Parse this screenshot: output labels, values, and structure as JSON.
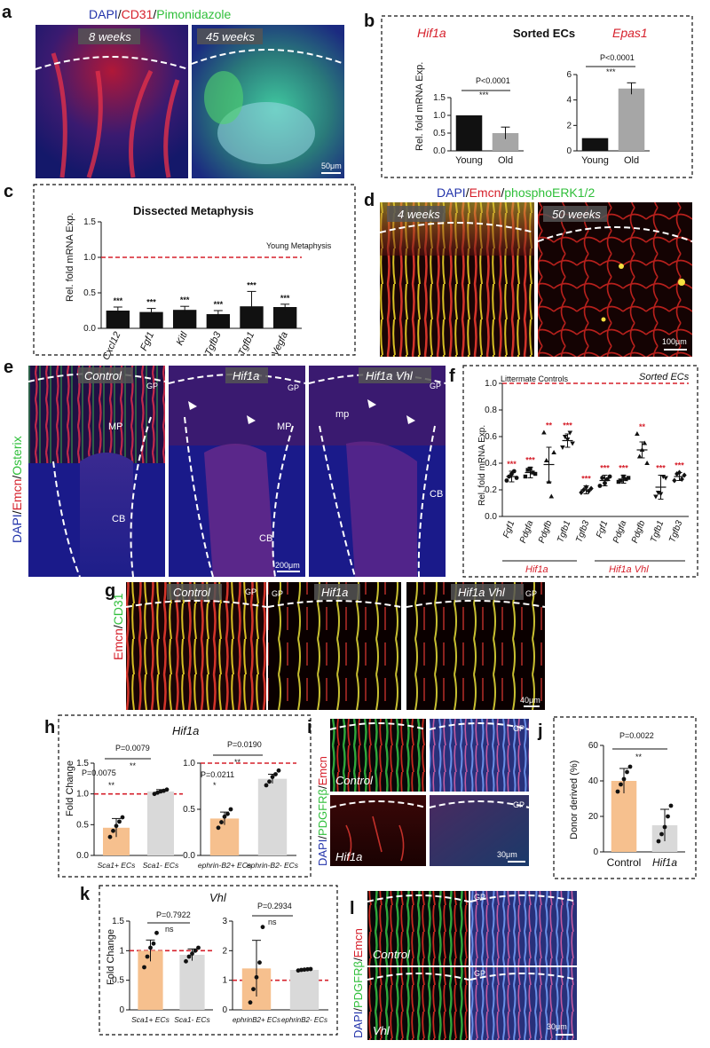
{
  "panels": {
    "a": {
      "letter": "a",
      "stain": [
        "DAPI",
        "/",
        "CD31",
        "/",
        "Pimonidazole"
      ],
      "img_left": "8 weeks",
      "img_right": "45 weeks",
      "scale": "50μm"
    },
    "b": {
      "letter": "b",
      "title": "Sorted ECs",
      "gene_left": "Hif1a",
      "gene_right": "Epas1",
      "ylabel": "Rel. fold mRNA  Exp.",
      "p_left": "P<0.0001",
      "p_right": "P<0.0001",
      "sig": "***"
    },
    "c": {
      "letter": "c",
      "title": "Dissected Metaphysis",
      "ylabel": "Rel. fold mRNA  Exp.",
      "ref_label": "Young Metaphysis"
    },
    "d": {
      "letter": "d",
      "stain": [
        "DAPI",
        "/",
        "Emcn",
        "/",
        "phosphoERK1/2"
      ],
      "img_left": "4 weeks",
      "img_right": "50 weeks",
      "scale": "100μm"
    },
    "e": {
      "letter": "e",
      "stain": [
        "DAPI",
        "/",
        "Emcn",
        "/",
        "Osterix"
      ],
      "img1": "Control",
      "img2": "Hif1a",
      "img3": "Hif1a Vhl",
      "gp": "GP",
      "mp1": "MP",
      "mp2": "MP",
      "mp3": "mp",
      "cb": "CB",
      "scale": "200μm"
    },
    "f": {
      "letter": "f",
      "title": "Sorted ECs",
      "ref_label": "Littermate Controls",
      "ylabel": "Rel. fold  mRNA Exp.",
      "group1": "Hif1a",
      "group2": "Hif1a Vhl"
    },
    "g": {
      "letter": "g",
      "stain": [
        "Emcn",
        "/",
        "CD31"
      ],
      "img1": "Control",
      "img2": "Hif1a",
      "img3": "Hif1a Vhl",
      "gp": "GP",
      "scale": "40μm"
    },
    "h": {
      "letter": "h",
      "title": "Hif1a",
      "ylabel": "Fold Change",
      "p1": "P=0.0079",
      "p2": "P=0.0075",
      "p3": "P=0.0190",
      "p4": "P=0.0211",
      "s1": "**",
      "s2": "**",
      "s3": "**",
      "s4": "*"
    },
    "i": {
      "letter": "i",
      "stain": [
        "DAPI",
        "/",
        "PDGFRβ",
        "/",
        "Emcn"
      ],
      "img_top": "Control",
      "img_bottom": "Hif1a",
      "gp": "GP",
      "scale": "30μm"
    },
    "j": {
      "letter": "j",
      "ylabel": "Donor derived (%)",
      "p": "P=0.0022",
      "sig": "**"
    },
    "k": {
      "letter": "k",
      "title": "Vhl",
      "ylabel": "Fold Change",
      "p1": "P=0.7922",
      "p2": "P=0.2934",
      "ns": "ns"
    },
    "l": {
      "letter": "l",
      "stain": [
        "DAPI",
        "/",
        "PDGFRβ",
        "/",
        "Emcn"
      ],
      "img_top": "Control",
      "img_bottom": "Vhl",
      "gp": "GP",
      "scale": "30μm"
    }
  },
  "colors": {
    "red": "#d6202b",
    "green": "#2fbf3a",
    "blue": "#2233aa",
    "orange": "#f6c08e",
    "grey": "#d9d9d9",
    "black": "#111111",
    "bar_grey": "#a6a6a6"
  },
  "chart_data": [
    {
      "id": "b-hif1a",
      "type": "bar",
      "title": "Hif1a",
      "categories": [
        "Young",
        "Old"
      ],
      "values": [
        1.0,
        0.5
      ],
      "errors": [
        0,
        0.17
      ],
      "ylim": [
        0,
        1.5
      ],
      "yticks": [
        0,
        0.5,
        1.0,
        1.5
      ],
      "colors": [
        "#111111",
        "#a6a6a6"
      ]
    },
    {
      "id": "b-epas1",
      "type": "bar",
      "title": "Epas1",
      "categories": [
        "Young",
        "Old"
      ],
      "values": [
        1.0,
        4.9
      ],
      "errors": [
        0,
        0.45
      ],
      "ylim": [
        0,
        6
      ],
      "yticks": [
        0,
        2,
        4,
        6
      ],
      "colors": [
        "#111111",
        "#a6a6a6"
      ]
    },
    {
      "id": "c",
      "type": "bar",
      "title": "Dissected Metaphysis",
      "categories": [
        "Cxcl12",
        "Fgf1",
        "Kitl",
        "Tgfb3",
        "Tgfb1",
        "Vegfa"
      ],
      "values": [
        0.25,
        0.23,
        0.26,
        0.2,
        0.31,
        0.3
      ],
      "errors": [
        0.05,
        0.05,
        0.05,
        0.05,
        0.21,
        0.04
      ],
      "sig": [
        "***",
        "***",
        "***",
        "***",
        "***",
        "***"
      ],
      "ylim": [
        0,
        1.5
      ],
      "yticks": [
        0,
        0.5,
        1.0,
        1.5
      ],
      "ref": 1.0,
      "ref_label": "Young Metaphysis"
    },
    {
      "id": "f",
      "type": "scatter",
      "title": "Sorted ECs",
      "categories": [
        "Fgf1",
        "Pdgfa",
        "Pdgfb",
        "Tgfb1",
        "Tgfb3",
        "Fgf1",
        "Pdgfa",
        "Pdgfb",
        "Tgfb1",
        "Tgfb3"
      ],
      "means": [
        0.3,
        0.33,
        0.39,
        0.57,
        0.2,
        0.27,
        0.28,
        0.5,
        0.22,
        0.3
      ],
      "errors": [
        0.04,
        0.04,
        0.13,
        0.05,
        0.03,
        0.04,
        0.03,
        0.06,
        0.09,
        0.03
      ],
      "points": [
        [
          0.27,
          0.3,
          0.32,
          0.34,
          0.29
        ],
        [
          0.3,
          0.35,
          0.36,
          0.33,
          0.32
        ],
        [
          0.63,
          0.42,
          0.26,
          0.15,
          0.48
        ],
        [
          0.52,
          0.6,
          0.58,
          0.63,
          0.55
        ],
        [
          0.18,
          0.2,
          0.22,
          0.19,
          0.21
        ],
        [
          0.23,
          0.29,
          0.25,
          0.28,
          0.3
        ],
        [
          0.26,
          0.27,
          0.3,
          0.28,
          0.29
        ],
        [
          0.62,
          0.45,
          0.5,
          0.55,
          0.4
        ],
        [
          0.15,
          0.18,
          0.17,
          0.3,
          0.29
        ],
        [
          0.27,
          0.32,
          0.33,
          0.28,
          0.31
        ]
      ],
      "sig": [
        "***",
        "***",
        "**",
        "***",
        "***",
        "***",
        "***",
        "**",
        "***",
        "***"
      ],
      "ylim": [
        0,
        1.0
      ],
      "yticks": [
        0,
        0.2,
        0.4,
        0.6,
        0.8,
        1.0
      ],
      "ref": 1.0
    },
    {
      "id": "h-left",
      "type": "bar",
      "categories": [
        "Sca1+ ECs",
        "Sca1- ECs"
      ],
      "values": [
        0.45,
        1.04
      ],
      "errors": [
        0.15,
        0.03
      ],
      "points": [
        [
          0.3,
          0.4,
          0.48,
          0.55,
          0.62
        ],
        [
          1.0,
          1.02,
          1.04,
          1.05,
          1.07
        ]
      ],
      "ylim": [
        0,
        1.5
      ],
      "yticks": [
        0,
        0.5,
        1.0,
        1.5
      ],
      "ref": 1.0
    },
    {
      "id": "h-right",
      "type": "bar",
      "categories": [
        "ephrin-B2+ ECs",
        "ephrin-B2- ECs"
      ],
      "values": [
        0.4,
        0.83
      ],
      "errors": [
        0.07,
        0.05
      ],
      "points": [
        [
          0.3,
          0.36,
          0.42,
          0.45,
          0.5
        ],
        [
          0.76,
          0.8,
          0.85,
          0.88,
          0.92
        ]
      ],
      "ylim": [
        0,
        1.0
      ],
      "yticks": [
        0,
        0.5,
        1.0
      ],
      "ref": 1.0
    },
    {
      "id": "j",
      "type": "bar",
      "categories": [
        "Control",
        "Hif1a"
      ],
      "values": [
        40,
        15
      ],
      "errors": [
        7,
        9
      ],
      "points": [
        [
          34,
          38,
          41,
          45,
          48
        ],
        [
          6,
          10,
          14,
          20,
          26
        ]
      ],
      "ylim": [
        0,
        60
      ],
      "yticks": [
        0,
        20,
        40,
        60
      ],
      "colors": [
        "#f6c08e",
        "#d9d9d9"
      ]
    },
    {
      "id": "k-left",
      "type": "bar",
      "categories": [
        "Sca1+ ECs",
        "Sca1- ECs"
      ],
      "values": [
        1.0,
        0.93
      ],
      "errors": [
        0.18,
        0.1
      ],
      "points": [
        [
          0.72,
          0.9,
          1.05,
          1.12,
          1.3
        ],
        [
          0.82,
          0.9,
          0.95,
          1.0,
          1.05
        ]
      ],
      "ylim": [
        0,
        1.5
      ],
      "yticks": [
        0,
        0.5,
        1,
        1.5
      ],
      "ref": 1.0
    },
    {
      "id": "k-right",
      "type": "bar",
      "categories": [
        "ephrinB2+ ECs",
        "ephrinB2- ECs"
      ],
      "values": [
        1.4,
        1.35
      ],
      "errors": [
        0.95,
        0.03
      ],
      "points": [
        [
          0.25,
          0.7,
          1.1,
          1.6,
          2.8
        ],
        [
          1.33,
          1.35,
          1.36,
          1.37,
          1.38
        ]
      ],
      "ylim": [
        0,
        3
      ],
      "yticks": [
        0,
        1,
        2,
        3
      ],
      "ref": 1.0
    }
  ]
}
